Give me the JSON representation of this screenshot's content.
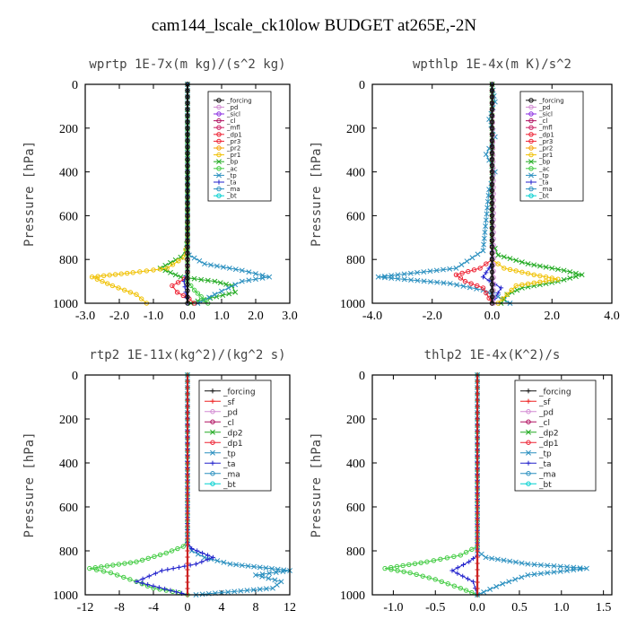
{
  "figure_title": "cam144_lscale_ck10low  BUDGET at265E,-2N",
  "chart_data": [
    {
      "type": "line",
      "title": "wprtp  1E-7x(m kg)/(s^2 kg)",
      "ylabel": "Pressure [hPa]",
      "xlim": [
        -3,
        3
      ],
      "ylim": [
        1000,
        0
      ],
      "xticks": [
        -3,
        -2,
        -1,
        0,
        1,
        2,
        3
      ],
      "xtick_labels": [
        "-3.0",
        "-2.0",
        "-1.0",
        "0.0",
        "1.0",
        "2.0",
        "3.0"
      ],
      "yticks": [
        0,
        200,
        400,
        600,
        800,
        1000
      ],
      "legend": [
        "_forcing",
        "_pd",
        "_sicl",
        "_cl",
        "_mfl",
        "_dp1",
        "_pr3",
        "_pr2",
        "_pr1",
        "_bp",
        "_ac",
        "_tp",
        "_ta",
        "_ma",
        "_bt"
      ],
      "series": [
        {
          "name": "_bp",
          "color": "#22aa22",
          "marker": "x",
          "x": [
            0,
            0,
            -0.05,
            -0.2,
            -0.8,
            -0.2,
            0.8,
            1.3,
            1.4,
            0.3,
            0.1
          ],
          "y": [
            0,
            700,
            760,
            790,
            840,
            880,
            900,
            920,
            950,
            990,
            1000
          ]
        },
        {
          "name": "_tp",
          "color": "#2a8fbf",
          "marker": "x",
          "x": [
            0,
            0,
            0.05,
            0.5,
            1.6,
            2.4,
            1.6,
            1.2,
            0.8,
            0.3
          ],
          "y": [
            0,
            740,
            780,
            820,
            850,
            880,
            900,
            930,
            960,
            1000
          ]
        },
        {
          "name": "_pr1",
          "color": "#f0c000",
          "marker": "o",
          "x": [
            0,
            0,
            -0.1,
            -0.6,
            -1.6,
            -2.8,
            -2.2,
            -1.5,
            -1.2
          ],
          "y": [
            0,
            720,
            790,
            840,
            860,
            880,
            920,
            960,
            1000
          ]
        },
        {
          "name": "_dp1",
          "color": "#ee2233",
          "marker": "o",
          "x": [
            0,
            0,
            -0.1,
            -0.45,
            -0.3,
            0.05,
            0.2
          ],
          "y": [
            0,
            860,
            890,
            920,
            950,
            980,
            1000
          ]
        },
        {
          "name": "_ta",
          "color": "#2222cc",
          "marker": "+",
          "x": [
            0,
            0,
            -0.1,
            -0.05,
            0
          ],
          "y": [
            0,
            850,
            900,
            950,
            1000
          ]
        },
        {
          "name": "_ac",
          "color": "#44cc44",
          "marker": "o",
          "x": [
            0,
            0,
            0.2,
            0.4,
            0.6
          ],
          "y": [
            0,
            900,
            940,
            970,
            1000
          ]
        },
        {
          "name": "_forcing",
          "color": "#111111",
          "marker": "o",
          "x": [
            0,
            0
          ],
          "y": [
            0,
            1000
          ]
        }
      ]
    },
    {
      "type": "line",
      "title": "wpthlp  1E-4x(m K)/s^2",
      "ylabel": "Pressure [hPa]",
      "xlim": [
        -4,
        4
      ],
      "ylim": [
        1000,
        0
      ],
      "xticks": [
        -4,
        -2,
        0,
        2,
        4
      ],
      "xtick_labels": [
        "-4.0",
        "-2.0",
        "0.0",
        "2.0",
        "4.0"
      ],
      "yticks": [
        0,
        200,
        400,
        600,
        800,
        1000
      ],
      "legend": [
        "_forcing",
        "_pd",
        "_sicl",
        "_cl",
        "_mfl",
        "_dp1",
        "_pr3",
        "_pr2",
        "_pr1",
        "_bp",
        "_ac",
        "_tp",
        "_ta",
        "_ma",
        "_bt"
      ],
      "series": [
        {
          "name": "_tp",
          "color": "#2a8fbf",
          "marker": "x",
          "x": [
            0,
            0.1,
            -0.1,
            0.1,
            -0.2,
            0.1,
            -0.1,
            -0.3,
            -1.2,
            -3.8,
            -1.4,
            -0.3,
            0.2,
            0.6
          ],
          "y": [
            0,
            80,
            160,
            240,
            320,
            400,
            480,
            760,
            840,
            880,
            910,
            940,
            970,
            1000
          ]
        },
        {
          "name": "_bp",
          "color": "#22aa22",
          "marker": "x",
          "x": [
            0,
            0,
            0.2,
            1.2,
            2.4,
            3.0,
            2.2,
            1.0,
            0.5,
            0.3
          ],
          "y": [
            0,
            720,
            780,
            820,
            850,
            870,
            900,
            930,
            960,
            1000
          ]
        },
        {
          "name": "_pr1",
          "color": "#f0c000",
          "marker": "o",
          "x": [
            0,
            0,
            0.4,
            1.4,
            2.2,
            0.8,
            0.2
          ],
          "y": [
            0,
            800,
            840,
            870,
            890,
            920,
            1000
          ]
        },
        {
          "name": "_dp1",
          "color": "#ee2233",
          "marker": "o",
          "x": [
            0,
            0,
            -0.4,
            -1.2,
            -0.9,
            -0.3,
            0
          ],
          "y": [
            0,
            800,
            840,
            870,
            900,
            930,
            1000
          ]
        },
        {
          "name": "_ta",
          "color": "#2222cc",
          "marker": "+",
          "x": [
            0,
            0,
            -0.3,
            0.3,
            0
          ],
          "y": [
            0,
            820,
            880,
            930,
            1000
          ]
        },
        {
          "name": "_pd",
          "color": "#d28ad2",
          "marker": "o",
          "x": [
            0,
            0.05,
            0.05
          ],
          "y": [
            0,
            500,
            1000
          ]
        },
        {
          "name": "_forcing",
          "color": "#111111",
          "marker": "o",
          "x": [
            0,
            0
          ],
          "y": [
            0,
            1000
          ]
        }
      ]
    },
    {
      "type": "line",
      "title": "rtp2  1E-11x(kg^2)/(kg^2 s)",
      "ylabel": "Pressure [hPa]",
      "xlim": [
        -12,
        12
      ],
      "ylim": [
        1000,
        0
      ],
      "xticks": [
        -12,
        -8,
        -4,
        0,
        4,
        8,
        12
      ],
      "xtick_labels": [
        "-12",
        "-8",
        "-4",
        "0",
        "4",
        "8",
        "12"
      ],
      "yticks": [
        0,
        200,
        400,
        600,
        800,
        1000
      ],
      "legend": [
        "_forcing",
        "_sf",
        "_pd",
        "_cl",
        "_dp2",
        "_dp1",
        "_tp",
        "_ta",
        "_ma",
        "_bt"
      ],
      "series": [
        {
          "name": "_dp1",
          "color": "#44cc44",
          "marker": "o",
          "x": [
            0,
            0,
            -0.5,
            -2.5,
            -6,
            -11.5,
            -9,
            -6,
            -4,
            -1,
            0
          ],
          "y": [
            0,
            750,
            780,
            810,
            850,
            880,
            900,
            940,
            970,
            990,
            1000
          ]
        },
        {
          "name": "_tp",
          "color": "#2a8fbf",
          "marker": "x",
          "x": [
            0,
            0,
            0.5,
            2,
            5,
            12,
            8,
            11,
            10,
            4,
            1
          ],
          "y": [
            0,
            770,
            800,
            830,
            860,
            890,
            910,
            940,
            970,
            990,
            1000
          ]
        },
        {
          "name": "_ta",
          "color": "#2222cc",
          "marker": "+",
          "x": [
            0,
            0,
            0.5,
            3,
            1,
            -3,
            -6,
            -2,
            0
          ],
          "y": [
            0,
            760,
            790,
            830,
            860,
            890,
            940,
            980,
            1000
          ]
        },
        {
          "name": "_forcing",
          "color": "#cc2222",
          "marker": "+",
          "x": [
            0,
            0
          ],
          "y": [
            0,
            1000
          ]
        }
      ]
    },
    {
      "type": "line",
      "title": "thlp2  1E-4x(K^2)/s",
      "ylabel": "Pressure [hPa]",
      "xlim": [
        -1.25,
        1.6
      ],
      "ylim": [
        1000,
        0
      ],
      "xticks": [
        -1.0,
        -0.5,
        0,
        0.5,
        1.0,
        1.5
      ],
      "xtick_labels": [
        "-1.0",
        "-0.5",
        "0.0",
        "0.5",
        "1.0",
        "1.5"
      ],
      "yticks": [
        0,
        200,
        400,
        600,
        800,
        1000
      ],
      "legend": [
        "_forcing",
        "_sf",
        "_pd",
        "_cl",
        "_dp2",
        "_dp1",
        "_tp",
        "_ta",
        "_ma",
        "_bt"
      ],
      "series": [
        {
          "name": "_dp1",
          "color": "#44cc44",
          "marker": "o",
          "x": [
            0,
            0,
            -0.2,
            -0.6,
            -1.1,
            -0.8,
            -0.5,
            -0.2,
            0
          ],
          "y": [
            0,
            780,
            820,
            850,
            880,
            900,
            930,
            970,
            1000
          ]
        },
        {
          "name": "_tp",
          "color": "#2a8fbf",
          "marker": "x",
          "x": [
            0,
            0,
            0.1,
            0.6,
            1.3,
            0.6,
            0.3,
            0
          ],
          "y": [
            0,
            800,
            830,
            860,
            880,
            910,
            950,
            1000
          ]
        },
        {
          "name": "_ta",
          "color": "#2222cc",
          "marker": "+",
          "x": [
            0,
            0,
            -0.1,
            -0.3,
            -0.05,
            0
          ],
          "y": [
            0,
            820,
            850,
            890,
            940,
            1000
          ]
        },
        {
          "name": "_forcing",
          "color": "#cc2222",
          "marker": "+",
          "x": [
            0,
            0
          ],
          "y": [
            0,
            1000
          ]
        }
      ]
    }
  ],
  "legend_colors": {
    "_forcing": "#111111",
    "_pd": "#d28ad2",
    "_sicl": "#8a2be2",
    "_cl": "#b01060",
    "_mfl": "#cc2266",
    "_dp1": "#ee2233",
    "_pr3": "#ee2233",
    "_pr2": "#f5a000",
    "_pr1": "#f0c000",
    "_bp": "#22aa22",
    "_ac": "#44cc44",
    "_tp": "#2a8fbf",
    "_ta": "#2222cc",
    "_ma": "#2a8fbf",
    "_bt": "#00d0d0",
    "_sf": "#ee2222",
    "_dp2": "#22aa22"
  }
}
